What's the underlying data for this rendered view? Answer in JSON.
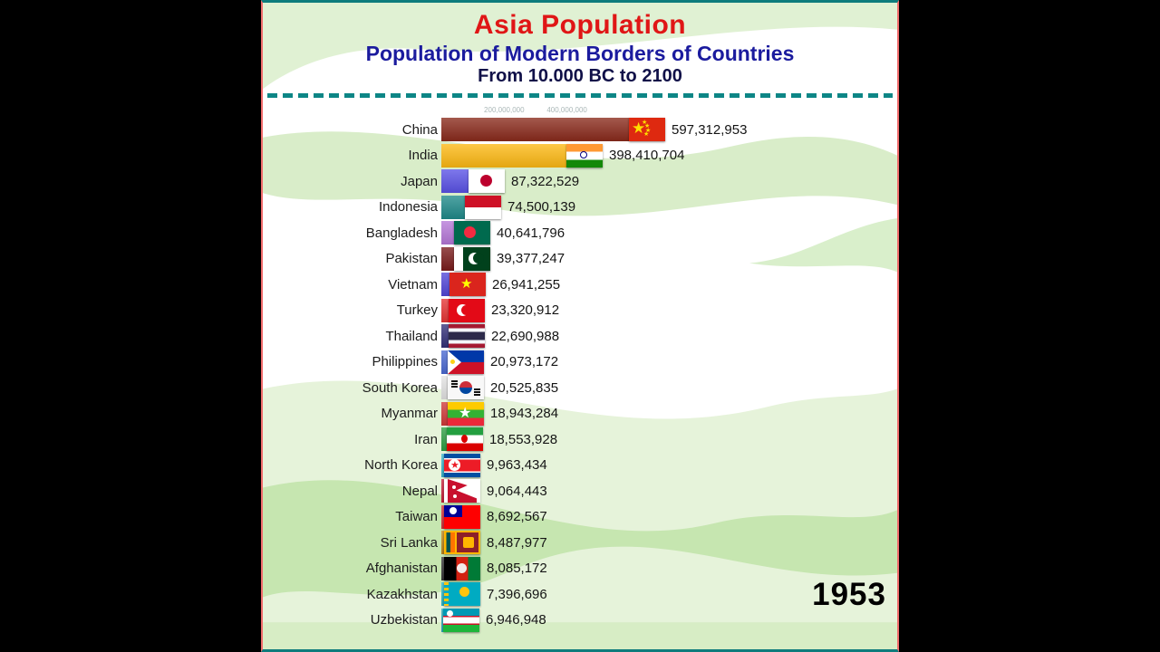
{
  "header": {
    "title": "Asia Population",
    "subtitle": "Population of Modern Borders of Countries",
    "range": "From 10.000 BC to 2100"
  },
  "year_label": "1953",
  "theme": {
    "title_color": "#e01616",
    "subtitle_color": "#1b1b9e",
    "range_color": "#101048",
    "divider_color": "#0d8686",
    "frame_top_color": "#0e7c7c",
    "frame_side_color": "#f26d6d",
    "year_color": "#000000"
  },
  "chart_data": {
    "type": "bar",
    "orientation": "horizontal",
    "title": "Asia Population",
    "subtitle": "Population of Modern Borders of Countries From 10.000 BC to 2100",
    "current_year": "1953",
    "xlim": [
      0,
      620000000
    ],
    "x_axis": {
      "ticks": [
        {
          "label": "200,000,000",
          "value": 200000000
        },
        {
          "label": "400,000,000",
          "value": 400000000
        }
      ]
    },
    "rows": [
      {
        "country": "China",
        "value": 597312953,
        "value_label": "597,312,953",
        "bar_color": "#8a2a1b",
        "flag": "china"
      },
      {
        "country": "India",
        "value": 398410704,
        "value_label": "398,410,704",
        "bar_color": "#fdb913",
        "flag": "india"
      },
      {
        "country": "Japan",
        "value": 87322529,
        "value_label": "87,322,529",
        "bar_color": "#5a52e6",
        "flag": "japan"
      },
      {
        "country": "Indonesia",
        "value": 74500139,
        "value_label": "74,500,139",
        "bar_color": "#1f8a8a",
        "flag": "indonesia"
      },
      {
        "country": "Bangladesh",
        "value": 40641796,
        "value_label": "40,641,796",
        "bar_color": "#b678d8",
        "flag": "bangladesh"
      },
      {
        "country": "Pakistan",
        "value": 39377247,
        "value_label": "39,377,247",
        "bar_color": "#7a1b1b",
        "flag": "pakistan"
      },
      {
        "country": "Vietnam",
        "value": 26941255,
        "value_label": "26,941,255",
        "bar_color": "#5246d8",
        "flag": "vietnam"
      },
      {
        "country": "Turkey",
        "value": 23320912,
        "value_label": "23,320,912",
        "bar_color": "#e63434",
        "flag": "turkey"
      },
      {
        "country": "Thailand",
        "value": 22690988,
        "value_label": "22,690,988",
        "bar_color": "#343079",
        "flag": "thailand"
      },
      {
        "country": "Philippines",
        "value": 20973172,
        "value_label": "20,973,172",
        "bar_color": "#4a69d2",
        "flag": "philippines"
      },
      {
        "country": "South Korea",
        "value": 20525835,
        "value_label": "20,525,835",
        "bar_color": "#e3e3e3",
        "flag": "south-korea"
      },
      {
        "country": "Myanmar",
        "value": 18943284,
        "value_label": "18,943,284",
        "bar_color": "#d03939",
        "flag": "myanmar"
      },
      {
        "country": "Iran",
        "value": 18553928,
        "value_label": "18,553,928",
        "bar_color": "#2f9e44",
        "flag": "iran"
      },
      {
        "country": "North Korea",
        "value": 9963434,
        "value_label": "9,963,434",
        "bar_color": "#3cb8cf",
        "flag": "north-korea"
      },
      {
        "country": "Nepal",
        "value": 9064443,
        "value_label": "9,064,443",
        "bar_color": "#c8203a",
        "flag": "nepal"
      },
      {
        "country": "Taiwan",
        "value": 8692567,
        "value_label": "8,692,567",
        "bar_color": "#d7343a",
        "flag": "taiwan"
      },
      {
        "country": "Sri Lanka",
        "value": 8487977,
        "value_label": "8,487,977",
        "bar_color": "#c08a1e",
        "flag": "sri-lanka"
      },
      {
        "country": "Afghanistan",
        "value": 8085172,
        "value_label": "8,085,172",
        "bar_color": "#3a3a3a",
        "flag": "afghanistan"
      },
      {
        "country": "Kazakhstan",
        "value": 7396696,
        "value_label": "7,396,696",
        "bar_color": "#2fb9c9",
        "flag": "kazakhstan"
      },
      {
        "country": "Uzbekistan",
        "value": 6946948,
        "value_label": "6,946,948",
        "bar_color": "#31b5c5",
        "flag": "uzbekistan"
      }
    ]
  }
}
